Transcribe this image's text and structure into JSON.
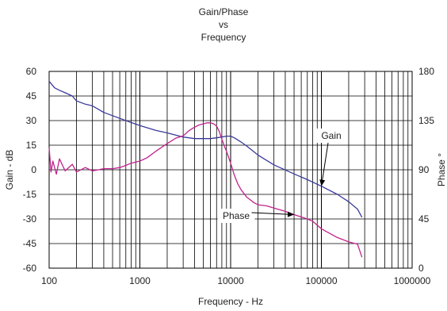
{
  "chart_data": {
    "type": "line",
    "title": [
      "Gain/Phase",
      "vs",
      "Frequency"
    ],
    "xlabel": "Frequency - Hz",
    "ylabel_left": "Gain - dB",
    "ylabel_right": "Phase °",
    "x_scale": "log",
    "xlim": [
      100,
      1000000
    ],
    "ylim_left": [
      -60,
      60
    ],
    "ylim_right": [
      0,
      180
    ],
    "x_ticks": [
      "100",
      "1000",
      "10000",
      "100000",
      "1000000"
    ],
    "y_ticks_left": [
      "60",
      "45",
      "30",
      "15",
      "0",
      "-15",
      "-30",
      "-45",
      "-60"
    ],
    "y_ticks_right": [
      "180",
      "135",
      "90",
      "45",
      "0"
    ],
    "grid": true,
    "series": [
      {
        "name": "Gain",
        "axis": "left",
        "color": "#3a3a9a",
        "x": [
          100,
          115,
          130,
          150,
          180,
          200,
          250,
          300,
          400,
          500,
          700,
          1000,
          1500,
          2000,
          3000,
          4000,
          5000,
          6000,
          7000,
          8000,
          9000,
          10000,
          11000,
          13000,
          15000,
          20000,
          30000,
          50000,
          70000,
          100000,
          150000,
          200000,
          250000,
          280000
        ],
        "y": [
          54,
          50,
          48.5,
          47,
          45,
          42,
          40,
          39,
          35,
          33,
          30,
          27,
          24,
          22.5,
          20,
          19,
          19,
          19,
          19.5,
          20,
          20.5,
          20.5,
          19.5,
          17,
          14.5,
          9,
          3,
          -2.5,
          -6,
          -10,
          -15,
          -19.5,
          -24,
          -29
        ]
      },
      {
        "name": "Phase",
        "axis": "right",
        "color": "#c0228c",
        "x": [
          100,
          105,
          110,
          120,
          130,
          150,
          180,
          200,
          250,
          300,
          350,
          400,
          500,
          600,
          700,
          800,
          1000,
          1200,
          1500,
          2000,
          2500,
          3000,
          3500,
          4000,
          4500,
          5000,
          5500,
          6000,
          6500,
          7000,
          7500,
          8000,
          8500,
          9000,
          10000,
          11000,
          12000,
          13000,
          15000,
          18000,
          20000,
          25000,
          30000,
          40000,
          50000,
          70000,
          80000,
          100000,
          150000,
          200000,
          250000,
          280000
        ],
        "y": [
          110,
          88,
          98,
          86,
          100,
          89,
          95,
          88,
          92,
          89,
          90,
          91,
          91,
          92,
          94,
          96,
          98,
          101,
          107,
          114,
          119,
          121,
          126,
          129,
          131,
          132,
          133,
          133,
          132,
          130,
          125,
          118,
          112,
          107,
          96,
          85,
          77,
          72,
          65,
          60,
          58,
          57,
          55,
          52,
          49,
          45,
          43,
          36,
          28,
          24,
          22,
          10
        ]
      }
    ],
    "annotations": [
      {
        "text": "Gain",
        "series": "Gain",
        "arrow_to_x": 100000
      },
      {
        "text": "Phase",
        "series": "Phase",
        "arrow_to_x": 50000
      }
    ]
  }
}
